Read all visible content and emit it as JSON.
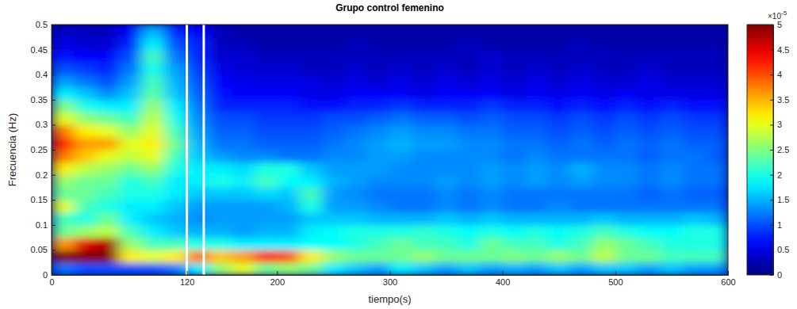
{
  "chart_data": {
    "type": "heatmap",
    "title": "Grupo control femenino",
    "x_label": "tiempo(s)",
    "y_label": "Frecuencia (Hz)",
    "xlim": [
      0,
      600
    ],
    "ylim": [
      0,
      0.5
    ],
    "xticks": [
      0,
      120,
      200,
      300,
      400,
      500,
      600
    ],
    "yticks": [
      0,
      0.05,
      0.1,
      0.15,
      0.2,
      0.25,
      0.3,
      0.35,
      0.4,
      0.45,
      0.5
    ],
    "x": [
      10,
      30,
      50,
      70,
      90,
      110,
      130,
      150,
      170,
      190,
      210,
      230,
      250,
      270,
      290,
      310,
      330,
      350,
      370,
      390,
      410,
      430,
      450,
      470,
      490,
      510,
      530,
      550,
      570,
      590
    ],
    "y": [
      0.0125,
      0.0375,
      0.0625,
      0.0875,
      0.1125,
      0.1375,
      0.1625,
      0.1875,
      0.2125,
      0.2375,
      0.2625,
      0.2875,
      0.3125,
      0.3375,
      0.3625,
      0.3875,
      0.4125,
      0.4375,
      0.4625,
      0.4875
    ],
    "z": [
      [
        1.2,
        1.0,
        1.0,
        1.0,
        1.0,
        1.2,
        1.8,
        2.6,
        3.0,
        2.4,
        2.6,
        2.4,
        1.8,
        1.6,
        1.4,
        1.8,
        1.6,
        1.4,
        1.6,
        1.4,
        1.5,
        1.4,
        1.6,
        1.4,
        1.6,
        1.6,
        1.4,
        1.6,
        1.4,
        1.4
      ],
      [
        5.0,
        5.0,
        5.0,
        3.2,
        3.0,
        3.2,
        3.8,
        3.4,
        3.6,
        4.2,
        4.0,
        3.2,
        2.6,
        2.4,
        2.4,
        2.4,
        2.6,
        2.4,
        2.4,
        2.4,
        2.5,
        2.4,
        2.6,
        2.4,
        2.8,
        2.4,
        2.4,
        2.2,
        2.2,
        2.2
      ],
      [
        3.6,
        4.5,
        4.8,
        2.6,
        2.2,
        2.2,
        2.0,
        2.0,
        1.8,
        1.8,
        1.8,
        1.9,
        1.9,
        2.0,
        2.2,
        2.4,
        2.2,
        2.2,
        2.0,
        2.4,
        2.2,
        2.2,
        2.0,
        2.2,
        2.6,
        2.4,
        2.2,
        2.0,
        2.0,
        2.0
      ],
      [
        2.4,
        2.6,
        2.8,
        2.2,
        1.8,
        1.6,
        1.5,
        1.5,
        1.4,
        1.5,
        1.5,
        1.8,
        1.9,
        2.0,
        2.0,
        2.0,
        2.1,
        2.0,
        1.9,
        2.0,
        1.9,
        2.0,
        1.9,
        2.0,
        2.2,
        2.0,
        1.9,
        1.9,
        2.0,
        2.0
      ],
      [
        2.2,
        2.0,
        2.4,
        1.8,
        1.6,
        1.5,
        1.3,
        1.4,
        1.4,
        1.4,
        1.4,
        1.6,
        1.6,
        1.6,
        1.5,
        1.5,
        1.5,
        1.6,
        1.5,
        1.6,
        1.5,
        1.5,
        1.5,
        1.5,
        1.6,
        1.5,
        1.5,
        1.5,
        1.6,
        1.5
      ],
      [
        3.0,
        2.2,
        2.0,
        1.8,
        1.8,
        1.6,
        1.4,
        1.4,
        1.4,
        1.4,
        1.5,
        2.0,
        1.4,
        1.4,
        1.3,
        1.2,
        1.2,
        1.3,
        1.2,
        1.3,
        1.2,
        1.2,
        1.3,
        1.2,
        1.2,
        1.2,
        1.2,
        1.2,
        1.2,
        1.2
      ],
      [
        2.4,
        2.4,
        2.2,
        2.0,
        2.0,
        1.8,
        1.6,
        1.6,
        1.6,
        1.7,
        1.6,
        2.2,
        1.4,
        1.3,
        1.2,
        1.2,
        1.2,
        1.3,
        1.2,
        1.3,
        1.2,
        1.2,
        1.2,
        1.2,
        1.2,
        1.2,
        1.1,
        1.2,
        1.1,
        1.1
      ],
      [
        2.6,
        2.4,
        2.4,
        2.0,
        2.2,
        1.8,
        1.8,
        2.0,
        1.8,
        2.2,
        1.9,
        1.8,
        1.5,
        1.4,
        1.3,
        1.3,
        1.3,
        1.4,
        1.3,
        1.4,
        1.3,
        1.4,
        1.3,
        1.4,
        1.3,
        1.3,
        1.2,
        1.3,
        1.2,
        1.2
      ],
      [
        3.2,
        2.8,
        2.6,
        2.4,
        2.6,
        2.0,
        1.8,
        1.8,
        1.7,
        2.0,
        2.0,
        1.6,
        1.4,
        1.4,
        1.4,
        1.3,
        1.3,
        1.3,
        1.3,
        1.4,
        1.3,
        1.4,
        1.3,
        1.5,
        1.3,
        1.3,
        1.2,
        1.3,
        1.2,
        1.2
      ],
      [
        3.8,
        3.4,
        3.0,
        2.8,
        3.0,
        2.2,
        1.6,
        1.4,
        1.3,
        1.3,
        1.2,
        1.2,
        1.3,
        1.3,
        1.4,
        1.4,
        1.3,
        1.3,
        1.3,
        1.3,
        1.2,
        1.3,
        1.2,
        1.2,
        1.2,
        1.2,
        1.1,
        1.2,
        1.2,
        1.1
      ],
      [
        4.2,
        3.6,
        3.6,
        3.0,
        3.2,
        2.4,
        1.5,
        1.2,
        1.2,
        1.1,
        1.1,
        1.1,
        1.2,
        1.3,
        1.4,
        1.5,
        1.4,
        1.4,
        1.3,
        1.3,
        1.2,
        1.2,
        1.1,
        1.2,
        1.1,
        1.2,
        1.1,
        1.2,
        1.1,
        1.1
      ],
      [
        3.8,
        3.2,
        3.0,
        2.6,
        3.0,
        2.2,
        1.4,
        1.1,
        1.1,
        1.0,
        1.0,
        1.0,
        1.1,
        1.2,
        1.3,
        1.4,
        1.3,
        1.3,
        1.2,
        1.2,
        1.1,
        1.1,
        1.0,
        1.1,
        1.0,
        1.1,
        1.0,
        1.1,
        1.0,
        1.0
      ],
      [
        3.0,
        2.6,
        2.4,
        2.2,
        2.8,
        2.0,
        1.3,
        1.0,
        1.0,
        0.9,
        0.9,
        0.9,
        1.0,
        1.0,
        1.1,
        1.2,
        1.1,
        1.1,
        1.0,
        1.1,
        1.0,
        1.0,
        0.9,
        1.0,
        0.9,
        1.0,
        0.9,
        1.0,
        0.9,
        0.9
      ],
      [
        2.5,
        2.0,
        1.8,
        1.8,
        2.6,
        1.8,
        1.2,
        0.8,
        0.8,
        0.8,
        0.8,
        0.7,
        0.7,
        0.8,
        0.8,
        0.9,
        0.8,
        0.8,
        0.8,
        0.9,
        0.8,
        0.8,
        0.7,
        0.8,
        0.7,
        0.8,
        0.7,
        0.8,
        0.7,
        0.7
      ],
      [
        1.8,
        1.6,
        1.3,
        1.6,
        2.3,
        1.6,
        1.1,
        0.7,
        0.6,
        0.6,
        0.6,
        0.5,
        0.5,
        0.6,
        0.6,
        0.6,
        0.5,
        0.6,
        0.6,
        0.6,
        0.5,
        0.6,
        0.5,
        0.6,
        0.5,
        0.6,
        0.5,
        0.5,
        0.5,
        0.5
      ],
      [
        1.4,
        1.2,
        1.0,
        1.4,
        2.2,
        1.5,
        1.0,
        0.6,
        0.5,
        0.5,
        0.5,
        0.5,
        0.4,
        0.5,
        0.4,
        0.5,
        0.4,
        0.5,
        0.4,
        0.5,
        0.4,
        0.5,
        0.4,
        0.5,
        0.4,
        0.4,
        0.5,
        0.4,
        0.4,
        0.4
      ],
      [
        1.0,
        0.9,
        0.8,
        1.2,
        2.0,
        1.4,
        0.9,
        0.5,
        0.4,
        0.4,
        0.4,
        0.3,
        0.3,
        0.4,
        0.3,
        0.4,
        0.3,
        0.4,
        0.3,
        0.4,
        0.3,
        0.4,
        0.3,
        0.4,
        0.3,
        0.3,
        0.4,
        0.3,
        0.3,
        0.3
      ],
      [
        0.7,
        0.6,
        0.6,
        1.0,
        2.2,
        1.2,
        0.8,
        0.4,
        0.4,
        0.3,
        0.3,
        0.3,
        0.3,
        0.3,
        0.3,
        0.3,
        0.3,
        0.3,
        0.3,
        0.4,
        0.3,
        0.3,
        0.3,
        0.3,
        0.3,
        0.3,
        0.3,
        0.3,
        0.3,
        0.3
      ],
      [
        0.5,
        0.4,
        0.4,
        0.8,
        1.8,
        1.0,
        0.8,
        0.3,
        0.3,
        0.2,
        0.2,
        0.2,
        0.2,
        0.3,
        0.2,
        0.2,
        0.2,
        0.2,
        0.3,
        0.2,
        0.2,
        0.2,
        0.2,
        0.3,
        0.2,
        0.2,
        0.2,
        0.2,
        0.2,
        0.2
      ],
      [
        0.3,
        0.3,
        0.3,
        0.6,
        1.5,
        0.8,
        0.6,
        0.3,
        0.2,
        0.2,
        0.2,
        0.2,
        0.2,
        0.2,
        0.2,
        0.2,
        0.2,
        0.2,
        0.2,
        0.2,
        0.2,
        0.2,
        0.2,
        0.2,
        0.2,
        0.2,
        0.2,
        0.2,
        0.2,
        0.2
      ]
    ],
    "colorbar_range": [
      0,
      5
    ],
    "colorbar_ticks": [
      0,
      0.5,
      1,
      1.5,
      2,
      2.5,
      3,
      3.5,
      4,
      4.5,
      5
    ],
    "colorbar_multiplier": "×10",
    "colorbar_exponent": "-5",
    "vlines": [
      120,
      135
    ]
  }
}
